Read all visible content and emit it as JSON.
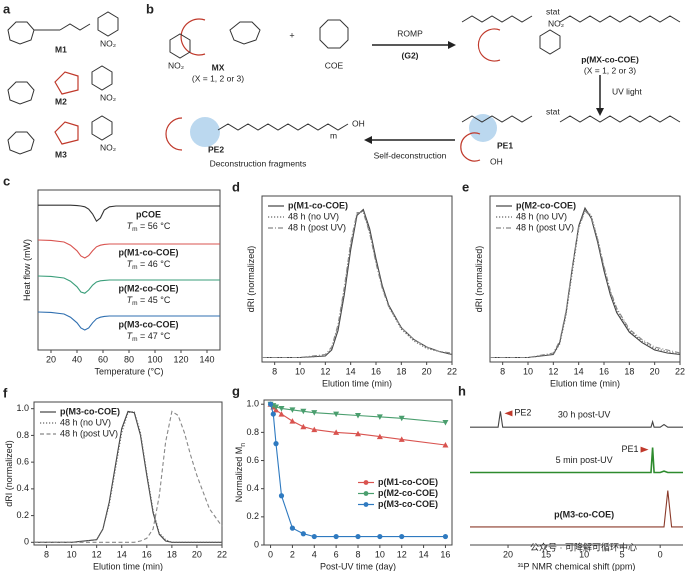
{
  "scheme": {
    "panel_a": "a",
    "panel_b": "b",
    "monomers": [
      "M1",
      "M2",
      "M3"
    ],
    "nitro": "NO₂",
    "monomer": "MX",
    "monomer_note": "(X = 1, 2 or 3)",
    "plus": "+",
    "comonomer": "COE",
    "reaction": "ROMP",
    "catalyst": "(G2)",
    "polymer": "p(MX-co-COE)",
    "polymer_note": "(X = 1, 2 or 3)",
    "stat": "stat",
    "repeat": "m",
    "uv": "UV light",
    "pe1": "PE1",
    "hydroxyl": "OH",
    "pe2": "PE2",
    "self": "Self-deconstruction",
    "fragments": "Deconstruction fragments"
  },
  "chart_data": [
    {
      "panel": "c",
      "type": "line",
      "frame": "box",
      "labels": "inline",
      "xlabel": "Temperature (°C)",
      "ylabel": "Heat flow (mW)",
      "xlim": [
        10,
        150
      ],
      "xticks": [
        20,
        40,
        60,
        80,
        100,
        120,
        140
      ],
      "ylim": [
        0,
        4
      ],
      "tm_symbol": "T",
      "tm_sub": "m",
      "x": [
        10,
        20,
        30,
        35,
        40,
        43,
        46,
        49,
        52,
        55,
        58,
        61,
        65,
        70,
        80,
        100,
        120,
        150
      ],
      "series": [
        {
          "name": "pCOE",
          "color": "#333333",
          "tm": " = 56 °C",
          "values": [
            3.62,
            3.62,
            3.62,
            3.62,
            3.61,
            3.6,
            3.58,
            3.52,
            3.4,
            3.22,
            3.3,
            3.5,
            3.58,
            3.6,
            3.6,
            3.6,
            3.6,
            3.6
          ]
        },
        {
          "name": "p(M1-co-COE)",
          "color": "#d9534f",
          "tm": " = 46 °C",
          "values": [
            2.75,
            2.74,
            2.7,
            2.62,
            2.48,
            2.35,
            2.3,
            2.36,
            2.48,
            2.58,
            2.62,
            2.64,
            2.65,
            2.65,
            2.65,
            2.65,
            2.65,
            2.65
          ]
        },
        {
          "name": "p(M2-co-COE)",
          "color": "#3a9e7a",
          "tm": " = 45 °C",
          "values": [
            1.85,
            1.84,
            1.8,
            1.72,
            1.58,
            1.45,
            1.42,
            1.5,
            1.62,
            1.7,
            1.73,
            1.74,
            1.75,
            1.75,
            1.75,
            1.75,
            1.75,
            1.75
          ]
        },
        {
          "name": "p(M3-co-COE)",
          "color": "#2f6fb0",
          "tm": " = 47 °C",
          "values": [
            0.95,
            0.94,
            0.9,
            0.82,
            0.68,
            0.55,
            0.5,
            0.55,
            0.68,
            0.78,
            0.82,
            0.84,
            0.85,
            0.85,
            0.85,
            0.85,
            0.85,
            0.85
          ]
        }
      ]
    },
    {
      "panel": "d",
      "type": "line",
      "frame": "box",
      "legend": "upper left",
      "xlabel": "Elution time (min)",
      "ylabel": "dRI (normalized)",
      "xlim": [
        7,
        22
      ],
      "xticks": [
        8,
        10,
        12,
        14,
        16,
        18,
        20,
        22
      ],
      "ylim": [
        -0.03,
        1.08
      ],
      "x": [
        7,
        10,
        12,
        12.5,
        13,
        13.5,
        14,
        14.5,
        15,
        15.5,
        16,
        16.5,
        17,
        18,
        19,
        20,
        21,
        22
      ],
      "series": [
        {
          "name": "p(M1-co-COE)",
          "color": "#444444",
          "linestyle": "solid",
          "values": [
            0,
            0,
            0.01,
            0.05,
            0.18,
            0.42,
            0.72,
            0.95,
            0.99,
            0.86,
            0.66,
            0.48,
            0.35,
            0.2,
            0.12,
            0.07,
            0.04,
            0.02
          ]
        },
        {
          "name": "48 h (no UV)",
          "color": "#666666",
          "linestyle": "dotted",
          "values": [
            0,
            0,
            0.01,
            0.06,
            0.2,
            0.45,
            0.75,
            0.96,
            0.98,
            0.84,
            0.64,
            0.47,
            0.34,
            0.19,
            0.11,
            0.06,
            0.04,
            0.02
          ]
        },
        {
          "name": "48 h (post UV)",
          "color": "#888888",
          "linestyle": "dashdot",
          "values": [
            0,
            0,
            0.02,
            0.07,
            0.22,
            0.47,
            0.77,
            0.97,
            0.97,
            0.83,
            0.63,
            0.46,
            0.34,
            0.2,
            0.12,
            0.07,
            0.04,
            0.03
          ]
        }
      ]
    },
    {
      "panel": "e",
      "type": "line",
      "frame": "box",
      "legend": "upper left",
      "xlabel": "Elution time (min)",
      "ylabel": "dRI (normalized)",
      "xlim": [
        7,
        22
      ],
      "xticks": [
        8,
        10,
        12,
        14,
        16,
        18,
        20,
        22
      ],
      "ylim": [
        -0.03,
        1.08
      ],
      "x": [
        7,
        10,
        12,
        12.5,
        13,
        13.5,
        14,
        14.5,
        15,
        15.5,
        16,
        16.5,
        17,
        18,
        19,
        20,
        21,
        22
      ],
      "series": [
        {
          "name": "p(M2-co-COE)",
          "color": "#444444",
          "linestyle": "solid",
          "values": [
            0,
            0,
            0.02,
            0.1,
            0.3,
            0.6,
            0.88,
            1.0,
            0.93,
            0.77,
            0.58,
            0.42,
            0.3,
            0.17,
            0.1,
            0.05,
            0.03,
            0.02
          ]
        },
        {
          "name": "48 h (no UV)",
          "color": "#666666",
          "linestyle": "dotted",
          "values": [
            0,
            0,
            0.02,
            0.09,
            0.28,
            0.57,
            0.86,
            0.99,
            0.95,
            0.79,
            0.6,
            0.44,
            0.32,
            0.18,
            0.11,
            0.06,
            0.04,
            0.02
          ]
        },
        {
          "name": "48 h (post UV)",
          "color": "#888888",
          "linestyle": "dashdot",
          "values": [
            0,
            0,
            0.03,
            0.11,
            0.31,
            0.6,
            0.87,
            0.98,
            0.94,
            0.79,
            0.61,
            0.45,
            0.33,
            0.19,
            0.12,
            0.07,
            0.05,
            0.03
          ]
        }
      ]
    },
    {
      "panel": "f",
      "type": "line",
      "frame": "box",
      "legend": "upper left",
      "xlabel": "Elution time (min)",
      "ylabel": "dRI (normalized)",
      "xlim": [
        7,
        22
      ],
      "xticks": [
        8,
        10,
        12,
        14,
        16,
        18,
        20,
        22
      ],
      "ylim": [
        -0.02,
        1.05
      ],
      "yticks": [
        0,
        0.2,
        0.4,
        0.6,
        0.8,
        {
          "value": 1,
          "label": "1.0"
        }
      ],
      "x": [
        7,
        10,
        12,
        12.5,
        13,
        13.5,
        14,
        14.5,
        15,
        15.5,
        16,
        16.5,
        17,
        17.5,
        18,
        18.5,
        19,
        19.5,
        20,
        21,
        22
      ],
      "series": [
        {
          "name": "p(M3-co-COE)",
          "color": "#444444",
          "linestyle": "solid",
          "values": [
            0,
            0,
            0.02,
            0.1,
            0.3,
            0.58,
            0.85,
            0.98,
            0.97,
            0.8,
            0.5,
            0.22,
            0.06,
            0.01,
            0,
            0,
            0,
            0,
            0,
            0,
            0
          ]
        },
        {
          "name": "48 h (no UV)",
          "color": "#666666",
          "linestyle": "dotted",
          "values": [
            0,
            0,
            0.02,
            0.1,
            0.28,
            0.55,
            0.82,
            0.97,
            0.98,
            0.82,
            0.52,
            0.24,
            0.07,
            0.02,
            0,
            0,
            0,
            0,
            0,
            0,
            0
          ]
        },
        {
          "name": "48 h (post UV)",
          "color": "#888888",
          "linestyle": "dashed",
          "values": [
            0,
            0,
            0,
            0,
            0,
            0,
            0,
            0,
            0,
            0.01,
            0.03,
            0.1,
            0.35,
            0.75,
            0.98,
            0.95,
            0.82,
            0.65,
            0.5,
            0.25,
            0.12
          ]
        }
      ]
    },
    {
      "panel": "g",
      "type": "line",
      "frame": "box",
      "legend": "center right",
      "xlabel": "Post-UV time (day)",
      "ylabel": "Normalized M",
      "ylabel_sub": "n",
      "xlim": [
        -0.6,
        16.6
      ],
      "xticks": [
        0,
        2,
        4,
        6,
        8,
        10,
        12,
        14,
        16
      ],
      "ylim": [
        0,
        1.03
      ],
      "yticks": [
        0,
        0.2,
        0.4,
        0.6,
        0.8,
        {
          "value": 1,
          "label": "1.0"
        }
      ],
      "x": [
        0,
        0.25,
        0.5,
        1,
        2,
        3,
        4,
        6,
        8,
        10,
        12,
        16
      ],
      "series": [
        {
          "name": "p(M1-co-COE)",
          "color": "#d9534f",
          "marker": "triangle-up",
          "values": [
            1,
            0.98,
            0.96,
            0.93,
            0.88,
            0.84,
            0.82,
            0.8,
            0.79,
            0.77,
            0.75,
            0.71
          ]
        },
        {
          "name": "p(M2-co-COE)",
          "color": "#4a9e6e",
          "marker": "triangle-down",
          "values": [
            1,
            0.99,
            0.98,
            0.97,
            0.96,
            0.95,
            0.94,
            0.93,
            0.92,
            0.91,
            0.9,
            0.87
          ]
        },
        {
          "name": "p(M3-co-COE)",
          "color": "#2f7ac0",
          "marker": "circle",
          "values": [
            1,
            0.93,
            0.72,
            0.35,
            0.12,
            0.08,
            0.06,
            0.06,
            0.06,
            0.06,
            0.06,
            0.06
          ]
        }
      ]
    },
    {
      "panel": "h",
      "type": "line",
      "frame": "bottom",
      "labels": "inline",
      "xlabel": "³¹P NMR chemical shift (ppm)",
      "xlim": [
        25,
        -3
      ],
      "xticks": [
        20,
        15,
        10,
        5,
        0
      ],
      "ylim": [
        0,
        3.2
      ],
      "x": [
        25,
        22,
        21.3,
        21,
        20.7,
        20,
        10,
        2,
        1.2,
        1,
        0.8,
        0,
        -0.5,
        -1,
        -1.5,
        -3
      ],
      "series": [
        {
          "label": "30 h post-UV",
          "peak_label": "PE2",
          "color": "#444444",
          "values": [
            2.6,
            2.6,
            2.6,
            2.95,
            2.6,
            2.6,
            2.6,
            2.6,
            2.6,
            2.72,
            2.6,
            2.6,
            2.66,
            2.6,
            2.6,
            2.6
          ]
        },
        {
          "label": "5 min post-UV",
          "peak_label": "PE1",
          "color": "#2e8b2e",
          "values": [
            1.6,
            1.6,
            1.6,
            1.6,
            1.6,
            1.6,
            1.6,
            1.6,
            1.6,
            2.15,
            1.6,
            1.6,
            1.63,
            1.6,
            1.6,
            1.6
          ]
        },
        {
          "label": "p(M3-co-COE)",
          "color": "#8b3a2a",
          "values": [
            0.4,
            0.4,
            0.4,
            0.4,
            0.4,
            0.4,
            0.4,
            0.4,
            0.4,
            0.4,
            0.4,
            0.4,
            0.4,
            1.2,
            0.4,
            0.4
          ]
        }
      ]
    }
  ],
  "watermark": "公众号 · 可降解可循环中心"
}
